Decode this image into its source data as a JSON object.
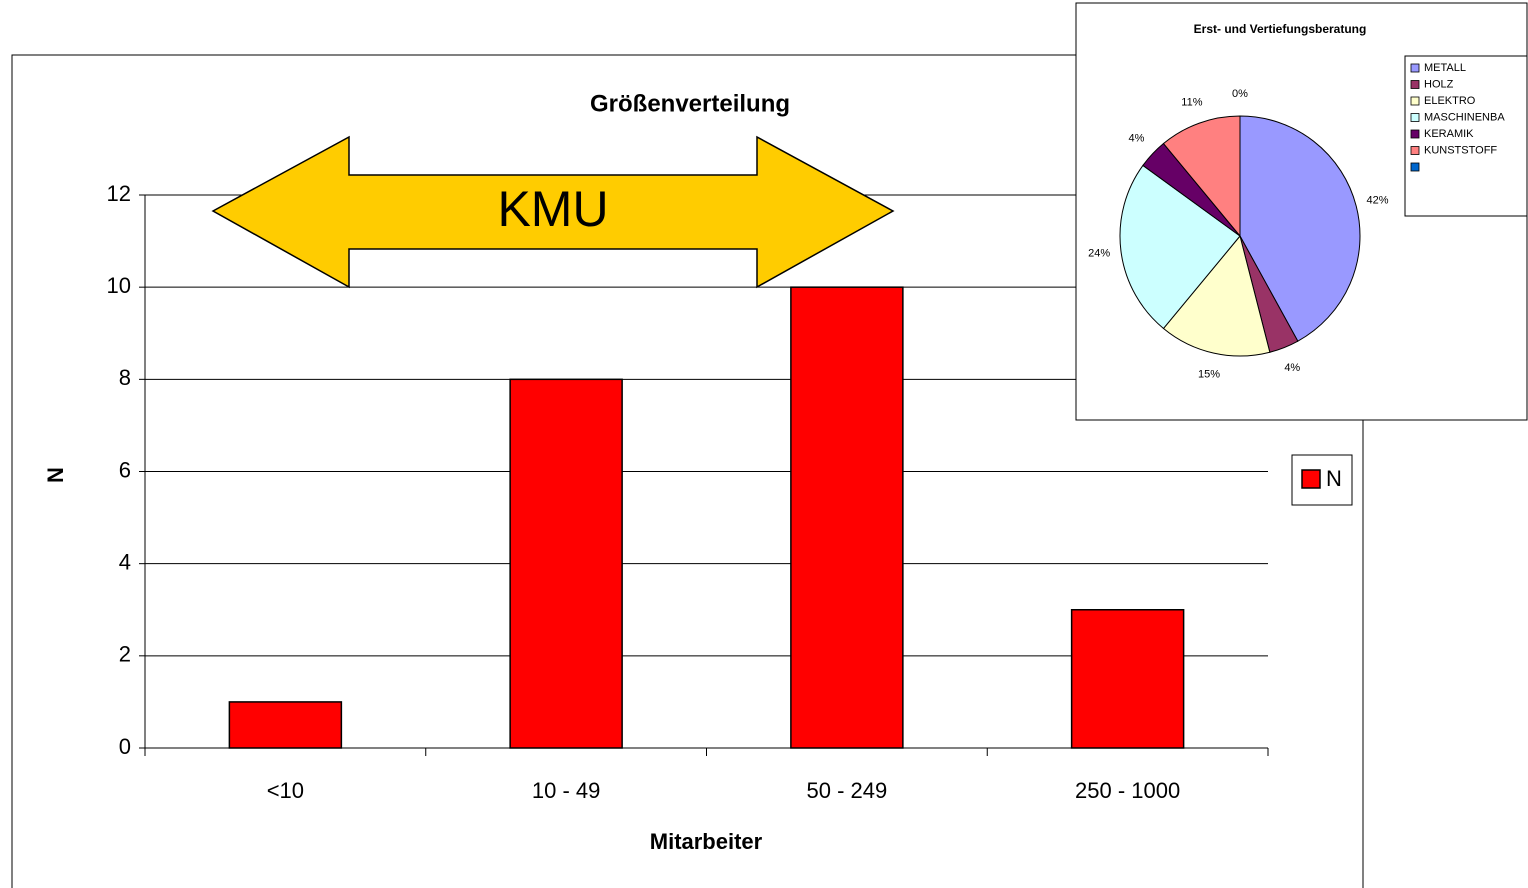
{
  "chart_data": [
    {
      "type": "bar",
      "title": "Größenverteilung",
      "x_label": "Mitarbeiter",
      "y_label": "N",
      "categories": [
        "<10",
        "10 - 49",
        "50 - 249",
        "250 - 1000"
      ],
      "series": [
        {
          "name": "N",
          "color": "#ff0000",
          "values": [
            1,
            8,
            10,
            3
          ]
        }
      ],
      "ylim": [
        0,
        12
      ],
      "yticks": [
        0,
        2,
        4,
        6,
        8,
        10,
        12
      ],
      "grid": true,
      "legend": "right",
      "annotation": "KMU"
    },
    {
      "type": "pie",
      "title": "Erst- und Vertiefungsberatung",
      "categories": [
        "METALL",
        "HOLZ",
        "ELEKTRO",
        "MASCHINENBA",
        "KERAMIK",
        "KUNSTSTOFF",
        null
      ],
      "values": [
        42,
        4,
        15,
        24,
        4,
        11,
        0
      ],
      "value_labels": [
        "42%",
        "4%",
        "15%",
        "24%",
        "4%",
        "11%",
        "0%"
      ],
      "colors": [
        "#9999ff",
        "#993366",
        "#ffffcc",
        "#ccffff",
        "#660066",
        "#ff8080",
        "#0066cc"
      ],
      "legend": "right"
    }
  ]
}
